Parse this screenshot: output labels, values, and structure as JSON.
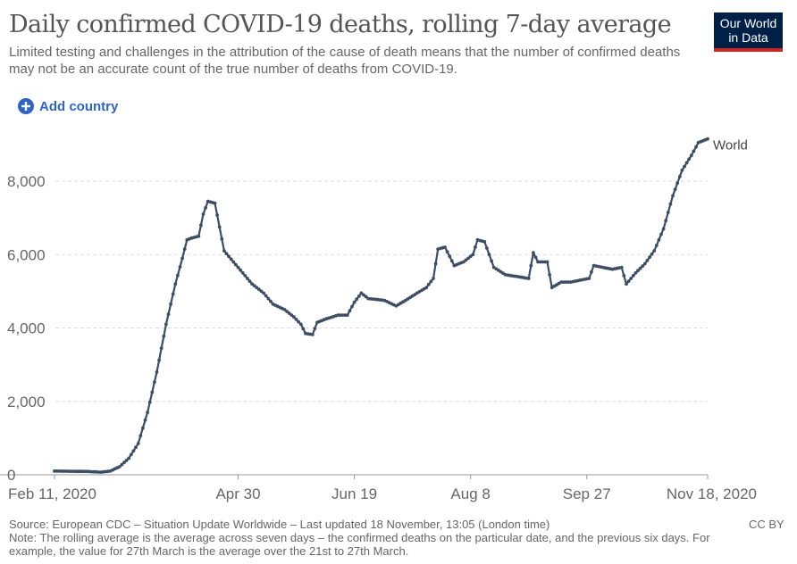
{
  "header": {
    "title": "Daily confirmed COVID-19 deaths, rolling 7-day average",
    "subtitle": "Limited testing and challenges in the attribution of the cause of death means that the number of confirmed deaths may not be an accurate count of the true number of deaths from COVID-19."
  },
  "logo": {
    "line1": "Our World",
    "line2": "in Data",
    "bg_color": "#002147",
    "accent_color": "#ce261e"
  },
  "controls": {
    "add_country_label": "Add country",
    "icon": "plus-circle-icon"
  },
  "footer": {
    "source": "Source: European CDC – Situation Update Worldwide – Last updated 18 November, 13:05 (London time)",
    "note": "Note: The rolling average is the average across seven days – the confirmed deaths on the particular date, and the previous six days. For example, the value for 27th March is the average over the 21st to 27th March.",
    "license": "CC BY"
  },
  "chart_data": {
    "type": "line",
    "title": "Daily confirmed COVID-19 deaths, rolling 7-day average",
    "xlabel": "",
    "ylabel": "",
    "xlim": [
      "2020-02-11",
      "2020-11-18"
    ],
    "ylim": [
      0,
      9500
    ],
    "y_ticks": [
      0,
      2000,
      4000,
      6000,
      8000
    ],
    "y_tick_labels": [
      "0",
      "2,000",
      "4,000",
      "6,000",
      "8,000"
    ],
    "x_ticks": [
      "2020-02-11",
      "2020-04-30",
      "2020-06-19",
      "2020-08-08",
      "2020-09-27",
      "2020-11-18"
    ],
    "x_tick_labels": [
      "Feb 11, 2020",
      "Apr 30",
      "Jun 19",
      "Aug 8",
      "Sep 27",
      "Nov 18, 2020"
    ],
    "grid": "horizontal-dashed",
    "line_color": "#3c4e66",
    "series": [
      {
        "name": "World",
        "points": [
          [
            "2020-02-11",
            100
          ],
          [
            "2020-02-25",
            90
          ],
          [
            "2020-03-02",
            70
          ],
          [
            "2020-03-06",
            100
          ],
          [
            "2020-03-10",
            220
          ],
          [
            "2020-03-14",
            450
          ],
          [
            "2020-03-18",
            850
          ],
          [
            "2020-03-22",
            1700
          ],
          [
            "2020-03-26",
            2800
          ],
          [
            "2020-03-30",
            4100
          ],
          [
            "2020-04-03",
            5200
          ],
          [
            "2020-04-06",
            5900
          ],
          [
            "2020-04-08",
            6400
          ],
          [
            "2020-04-10",
            6450
          ],
          [
            "2020-04-13",
            6500
          ],
          [
            "2020-04-15",
            7100
          ],
          [
            "2020-04-17",
            7450
          ],
          [
            "2020-04-20",
            7400
          ],
          [
            "2020-04-24",
            6100
          ],
          [
            "2020-04-28",
            5800
          ],
          [
            "2020-05-02",
            5500
          ],
          [
            "2020-05-06",
            5200
          ],
          [
            "2020-05-11",
            4950
          ],
          [
            "2020-05-15",
            4650
          ],
          [
            "2020-05-20",
            4500
          ],
          [
            "2020-05-24",
            4300
          ],
          [
            "2020-05-27",
            4100
          ],
          [
            "2020-05-29",
            3850
          ],
          [
            "2020-06-01",
            3820
          ],
          [
            "2020-06-03",
            4150
          ],
          [
            "2020-06-07",
            4250
          ],
          [
            "2020-06-12",
            4350
          ],
          [
            "2020-06-16",
            4350
          ],
          [
            "2020-06-19",
            4700
          ],
          [
            "2020-06-22",
            4950
          ],
          [
            "2020-06-25",
            4800
          ],
          [
            "2020-06-28",
            4780
          ],
          [
            "2020-07-02",
            4750
          ],
          [
            "2020-07-07",
            4600
          ],
          [
            "2020-07-11",
            4750
          ],
          [
            "2020-07-16",
            4950
          ],
          [
            "2020-07-20",
            5100
          ],
          [
            "2020-07-23",
            5350
          ],
          [
            "2020-07-25",
            6150
          ],
          [
            "2020-07-28",
            6200
          ],
          [
            "2020-08-01",
            5700
          ],
          [
            "2020-08-05",
            5800
          ],
          [
            "2020-08-09",
            6000
          ],
          [
            "2020-08-11",
            6400
          ],
          [
            "2020-08-14",
            6350
          ],
          [
            "2020-08-18",
            5650
          ],
          [
            "2020-08-23",
            5450
          ],
          [
            "2020-08-28",
            5400
          ],
          [
            "2020-09-02",
            5350
          ],
          [
            "2020-09-04",
            6050
          ],
          [
            "2020-09-06",
            5800
          ],
          [
            "2020-09-10",
            5800
          ],
          [
            "2020-09-12",
            5100
          ],
          [
            "2020-09-16",
            5250
          ],
          [
            "2020-09-20",
            5250
          ],
          [
            "2020-09-24",
            5300
          ],
          [
            "2020-09-28",
            5350
          ],
          [
            "2020-09-30",
            5700
          ],
          [
            "2020-10-04",
            5650
          ],
          [
            "2020-10-08",
            5600
          ],
          [
            "2020-10-12",
            5650
          ],
          [
            "2020-10-14",
            5200
          ],
          [
            "2020-10-18",
            5500
          ],
          [
            "2020-10-22",
            5750
          ],
          [
            "2020-10-26",
            6100
          ],
          [
            "2020-10-30",
            6700
          ],
          [
            "2020-11-03",
            7600
          ],
          [
            "2020-11-07",
            8300
          ],
          [
            "2020-11-11",
            8700
          ],
          [
            "2020-11-14",
            9050
          ],
          [
            "2020-11-18",
            9150
          ]
        ]
      }
    ]
  }
}
